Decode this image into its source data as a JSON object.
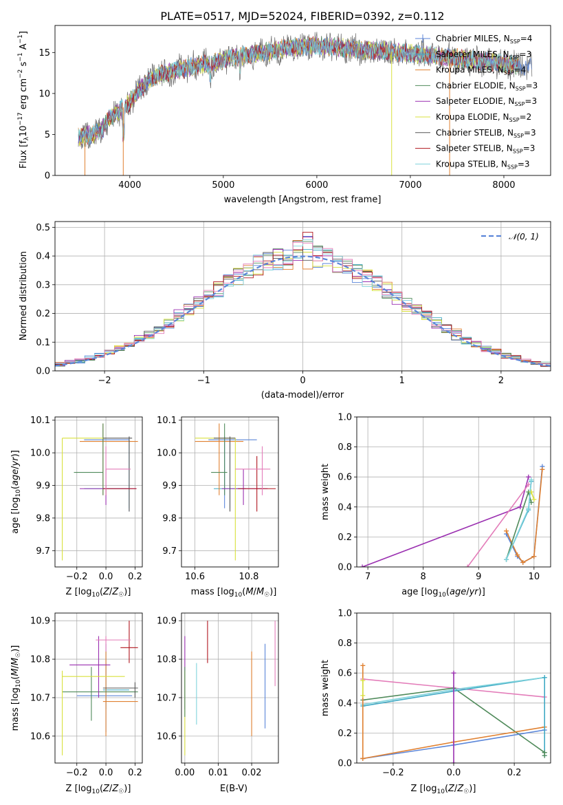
{
  "figure": {
    "title": "PLATE=0517, MJD=52024, FIBERID=0392, z=0.112"
  },
  "legend_entries": [
    {
      "label": "Chabrier MILES, N_SSP=4",
      "base": "Chabrier MILES, N",
      "sub": "SSP",
      "tail": "=4",
      "color": "#5b86d9"
    },
    {
      "label": "Salpeter MILES, N_SSP=3",
      "base": "Salpeter MILES, N",
      "sub": "SSP",
      "tail": "=3",
      "color": "#3fa9c4"
    },
    {
      "label": "Kroupa MILES, N_SSP=4",
      "base": "Kroupa MILES, N",
      "sub": "SSP",
      "tail": "=4",
      "color": "#e08030"
    },
    {
      "label": "Chabrier ELODIE, N_SSP=3",
      "base": "Chabrier ELODIE, N",
      "sub": "SSP",
      "tail": "=3",
      "color": "#4f8a5a"
    },
    {
      "label": "Salpeter ELODIE, N_SSP=3",
      "base": "Salpeter ELODIE, N",
      "sub": "SSP",
      "tail": "=3",
      "color": "#9a2fb0"
    },
    {
      "label": "Kroupa ELODIE, N_SSP=2",
      "base": "Kroupa ELODIE, N",
      "sub": "SSP",
      "tail": "=2",
      "color": "#d8e03c"
    },
    {
      "label": "Chabrier STELIB, N_SSP=3",
      "base": "Chabrier STELIB, N",
      "sub": "SSP",
      "tail": "=3",
      "color": "#555555"
    },
    {
      "label": "Salpeter STELIB, N_SSP=3",
      "base": "Salpeter STELIB, N",
      "sub": "SSP",
      "tail": "=3",
      "color": "#b0151d"
    },
    {
      "label": "Kroupa STELIB, N_SSP=3",
      "base": "Kroupa STELIB, N",
      "sub": "SSP",
      "tail": "=3",
      "color": "#7fd3dc"
    }
  ],
  "extra_colors": {
    "pink": "#e37cb9",
    "gray": "#7a7a7a"
  },
  "chart_data": [
    {
      "id": "spectrum",
      "type": "line",
      "xlabel": "wavelength [Angstrom, rest frame]",
      "ylabel": "Flux [f_λ 10^-17 erg cm^-2 s^-1 A^-1]",
      "xlim": [
        3200,
        8500
      ],
      "ylim": [
        0,
        18.3
      ],
      "xticks": [
        4000,
        5000,
        6000,
        7000,
        8000
      ],
      "yticks": [
        0,
        5,
        10,
        15
      ],
      "grid": false,
      "legend": "top-right",
      "continuum": [
        [
          3450,
          4.6
        ],
        [
          3600,
          5.0
        ],
        [
          3700,
          5.6
        ],
        [
          3800,
          7.2
        ],
        [
          3900,
          8.0
        ],
        [
          4000,
          9.0
        ],
        [
          4100,
          10.5
        ],
        [
          4200,
          11.5
        ],
        [
          4300,
          12.2
        ],
        [
          4500,
          12.8
        ],
        [
          4700,
          13.4
        ],
        [
          4900,
          13.8
        ],
        [
          5100,
          14.4
        ],
        [
          5300,
          14.8
        ],
        [
          5500,
          15.2
        ],
        [
          5700,
          15.6
        ],
        [
          5900,
          15.8
        ],
        [
          6100,
          15.8
        ],
        [
          6300,
          15.5
        ],
        [
          6500,
          15.3
        ],
        [
          6700,
          15.2
        ],
        [
          6900,
          15.0
        ],
        [
          7100,
          14.8
        ],
        [
          7300,
          14.5
        ],
        [
          7500,
          14.3
        ],
        [
          7700,
          14.0
        ],
        [
          7900,
          13.8
        ],
        [
          8100,
          13.5
        ],
        [
          8300,
          13.2
        ]
      ]
    },
    {
      "id": "residuals",
      "type": "line",
      "xlabel": "(data-model)/error",
      "ylabel": "Normed distribution",
      "xlim": [
        -2.5,
        2.5
      ],
      "ylim": [
        0,
        0.52
      ],
      "xticks": [
        -2,
        -1,
        0,
        1,
        2
      ],
      "yticks": [
        0.0,
        0.1,
        0.2,
        0.3,
        0.4,
        0.5
      ],
      "grid": true,
      "legend": "top-right",
      "legend_label": "𝒩(0, 1)",
      "bin_width": 0.1,
      "bin_start": -2.5
    },
    {
      "id": "age-vs-Z",
      "type": "scatter",
      "xlabel": "Z [log10(Z/Z☉)]",
      "ylabel": "age [log10(age/yr)]",
      "xlim": [
        -0.35,
        0.25
      ],
      "ylim": [
        9.65,
        10.11
      ],
      "xticks": [
        -0.2,
        0.0,
        0.2
      ],
      "yticks": [
        9.7,
        9.8,
        9.9,
        10.0,
        10.1
      ],
      "grid": true,
      "points": [
        {
          "c": "#5b86d9",
          "x": 0.16,
          "y": 10.04,
          "xl": -0.15,
          "xh": 0.16,
          "yl": 9.82,
          "yh": 10.05
        },
        {
          "c": "#3fa9c4",
          "x": 0.16,
          "y": 9.89,
          "xl": -0.15,
          "xh": 0.16,
          "yl": 9.83,
          "yh": 10.04
        },
        {
          "c": "#e08030",
          "x": -0.02,
          "y": 10.035,
          "xl": -0.18,
          "xh": 0.22,
          "yl": 9.87,
          "yh": 10.09
        },
        {
          "c": "#4f8a5a",
          "x": -0.02,
          "y": 9.94,
          "xl": -0.22,
          "xh": -0.02,
          "yl": 9.87,
          "yh": 10.09
        },
        {
          "c": "#9a2fb0",
          "x": 0.0,
          "y": 9.89,
          "xl": -0.18,
          "xh": 0.21,
          "yl": 9.84,
          "yh": 9.95
        },
        {
          "c": "#d8e03c",
          "x": -0.3,
          "y": 10.045,
          "xl": -0.3,
          "xh": 0.0,
          "yl": 9.67,
          "yh": 10.045
        },
        {
          "c": "#555555",
          "x": 0.16,
          "y": 10.045,
          "xl": -0.02,
          "xh": 0.18,
          "yl": 9.82,
          "yh": 10.05
        },
        {
          "c": "#b0151d",
          "x": 0.0,
          "y": 9.89,
          "xl": -0.02,
          "xh": 0.21,
          "yl": 9.87,
          "yh": 9.9
        },
        {
          "c": "#e37cb9",
          "x": 0.0,
          "y": 9.95,
          "xl": 0.0,
          "xh": 0.17,
          "yl": 9.87,
          "yh": 10.02
        }
      ]
    },
    {
      "id": "age-vs-mass",
      "type": "scatter",
      "xlabel": "mass [log10(M/M☉)]",
      "ylabel": "",
      "xlim": [
        10.55,
        10.91
      ],
      "ylim": [
        9.65,
        10.11
      ],
      "xticks": [
        10.6,
        10.8
      ],
      "yticks": [
        9.7,
        9.8,
        9.9,
        10.0,
        10.1
      ],
      "grid": true,
      "points": [
        {
          "c": "#5b86d9",
          "x": 10.71,
          "y": 10.04,
          "xl": 10.65,
          "xh": 10.83,
          "yl": 9.83,
          "yh": 10.05
        },
        {
          "c": "#3fa9c4",
          "x": 10.73,
          "y": 9.89,
          "xl": 10.67,
          "xh": 10.79,
          "yl": 9.83,
          "yh": 10.04
        },
        {
          "c": "#e08030",
          "x": 10.69,
          "y": 10.035,
          "xl": 10.6,
          "xh": 10.78,
          "yl": 9.87,
          "yh": 10.09
        },
        {
          "c": "#4f8a5a",
          "x": 10.71,
          "y": 9.94,
          "xl": 10.66,
          "xh": 10.72,
          "yl": 9.87,
          "yh": 10.09
        },
        {
          "c": "#9a2fb0",
          "x": 10.78,
          "y": 9.89,
          "xl": 10.7,
          "xh": 10.87,
          "yl": 9.84,
          "yh": 9.95
        },
        {
          "c": "#d8e03c",
          "x": 10.75,
          "y": 10.045,
          "xl": 10.6,
          "xh": 10.75,
          "yl": 9.67,
          "yh": 10.045
        },
        {
          "c": "#555555",
          "x": 10.73,
          "y": 10.045,
          "xl": 10.67,
          "xh": 10.75,
          "yl": 9.82,
          "yh": 10.05
        },
        {
          "c": "#b0151d",
          "x": 10.83,
          "y": 9.89,
          "xl": 10.76,
          "xh": 10.9,
          "yl": 9.82,
          "yh": 9.99
        },
        {
          "c": "#e37cb9",
          "x": 10.85,
          "y": 9.95,
          "xl": 10.75,
          "xh": 10.88,
          "yl": 9.87,
          "yh": 10.02
        }
      ]
    },
    {
      "id": "weight-vs-age",
      "type": "line",
      "xlabel": "age [log10(age/yr)]",
      "ylabel": "mass weight",
      "xlim": [
        6.8,
        10.3
      ],
      "ylim": [
        0,
        1.0
      ],
      "xticks": [
        7,
        8,
        9,
        10
      ],
      "yticks": [
        0.0,
        0.2,
        0.4,
        0.6,
        0.8,
        1.0
      ],
      "grid": true,
      "series": [
        {
          "c": "#9a2fb0",
          "x": [
            6.9,
            9.75,
            9.9
          ],
          "y": [
            0.0,
            0.4,
            0.6
          ]
        },
        {
          "c": "#e37cb9",
          "x": [
            8.8,
            9.9
          ],
          "y": [
            0.0,
            0.55
          ]
        },
        {
          "c": "#5b86d9",
          "x": [
            9.5,
            9.7,
            9.8,
            10.0,
            10.15
          ],
          "y": [
            0.22,
            0.07,
            0.03,
            0.07,
            0.67
          ]
        },
        {
          "c": "#e08030",
          "x": [
            9.5,
            9.7,
            9.8,
            10.0,
            10.15
          ],
          "y": [
            0.24,
            0.08,
            0.03,
            0.07,
            0.65
          ]
        },
        {
          "c": "#4f8a5a",
          "x": [
            9.5,
            9.9,
            9.95
          ],
          "y": [
            0.05,
            0.5,
            0.43
          ]
        },
        {
          "c": "#3fa9c4",
          "x": [
            9.5,
            9.9,
            9.95
          ],
          "y": [
            0.05,
            0.38,
            0.57
          ]
        },
        {
          "c": "#7fd3dc",
          "x": [
            9.5,
            9.9,
            9.95
          ],
          "y": [
            0.05,
            0.39,
            0.58
          ]
        },
        {
          "c": "#d8e03c",
          "x": [
            9.95,
            10.0
          ],
          "y": [
            0.5,
            0.45
          ]
        }
      ]
    },
    {
      "id": "mass-vs-Z",
      "type": "scatter",
      "xlabel": "Z [log10(Z/Z☉)]",
      "ylabel": "mass [log10(M/M☉)]",
      "xlim": [
        -0.35,
        0.25
      ],
      "ylim": [
        10.53,
        10.92
      ],
      "xticks": [
        -0.2,
        0.0,
        0.2
      ],
      "yticks": [
        10.6,
        10.7,
        10.8,
        10.9
      ],
      "grid": true,
      "points": [
        {
          "c": "#5b86d9",
          "x": 0.0,
          "y": 10.705,
          "xl": -0.2,
          "xh": 0.18,
          "yl": 10.61,
          "yh": 10.84
        },
        {
          "c": "#3fa9c4",
          "x": 0.0,
          "y": 10.72,
          "xl": -0.02,
          "xh": 0.16,
          "yl": 10.67,
          "yh": 10.79
        },
        {
          "c": "#e08030",
          "x": 0.0,
          "y": 10.69,
          "xl": -0.02,
          "xh": 0.22,
          "yl": 10.6,
          "yh": 10.82
        },
        {
          "c": "#4f8a5a",
          "x": -0.1,
          "y": 10.715,
          "xl": -0.3,
          "xh": 0.22,
          "yl": 10.64,
          "yh": 10.78
        },
        {
          "c": "#9a2fb0",
          "x": -0.05,
          "y": 10.785,
          "xl": -0.25,
          "xh": 0.03,
          "yl": 10.7,
          "yh": 10.86
        },
        {
          "c": "#d8e03c",
          "x": -0.3,
          "y": 10.755,
          "xl": -0.3,
          "xh": 0.13,
          "yl": 10.55,
          "yh": 10.77
        },
        {
          "c": "#555555",
          "x": 0.2,
          "y": 10.725,
          "xl": -0.02,
          "xh": 0.22,
          "yl": 10.7,
          "yh": 10.74
        },
        {
          "c": "#b0151d",
          "x": 0.16,
          "y": 10.83,
          "xl": 0.1,
          "xh": 0.22,
          "yl": 10.79,
          "yh": 10.9
        },
        {
          "c": "#e37cb9",
          "x": 0.0,
          "y": 10.85,
          "xl": -0.07,
          "xh": 0.17,
          "yl": 10.82,
          "yh": 10.86
        }
      ]
    },
    {
      "id": "mass-vs-ebv",
      "type": "scatter",
      "xlabel": "E(B-V)",
      "ylabel": "",
      "xlim": [
        -0.001,
        0.028
      ],
      "ylim": [
        10.53,
        10.92
      ],
      "xticks": [
        0.0,
        0.01,
        0.02
      ],
      "yticks": [
        10.6,
        10.7,
        10.8,
        10.9
      ],
      "grid": true,
      "points": [
        {
          "c": "#9a2fb0",
          "x": 0.0,
          "y": 10.76,
          "xl": 0.0,
          "xh": 0.0,
          "yl": 10.67,
          "yh": 10.86
        },
        {
          "c": "#d8e03c",
          "x": 0.0,
          "y": 10.66,
          "xl": 0.0,
          "xh": 0.0,
          "yl": 10.55,
          "yh": 10.77
        },
        {
          "c": "#4f8a5a",
          "x": 0.0,
          "y": 10.7,
          "xl": 0.0,
          "xh": 0.0,
          "yl": 10.65,
          "yh": 10.78
        },
        {
          "c": "#7fd3dc",
          "x": 0.0035,
          "y": 10.71,
          "xl": 0.0035,
          "xh": 0.0035,
          "yl": 10.63,
          "yh": 10.79
        },
        {
          "c": "#b0151d",
          "x": 0.0068,
          "y": 10.85,
          "xl": 0.0068,
          "xh": 0.0068,
          "yl": 10.79,
          "yh": 10.9
        },
        {
          "c": "#e08030",
          "x": 0.02,
          "y": 10.7,
          "xl": 0.02,
          "xh": 0.02,
          "yl": 10.6,
          "yh": 10.82
        },
        {
          "c": "#5b86d9",
          "x": 0.024,
          "y": 10.73,
          "xl": 0.024,
          "xh": 0.024,
          "yl": 10.62,
          "yh": 10.84
        },
        {
          "c": "#e37cb9",
          "x": 0.027,
          "y": 10.81,
          "xl": 0.027,
          "xh": 0.027,
          "yl": 10.73,
          "yh": 10.9
        }
      ]
    },
    {
      "id": "weight-vs-Z",
      "type": "line",
      "xlabel": "Z [log10(Z/Z☉)]",
      "ylabel": "mass weight",
      "xlim": [
        -0.32,
        0.32
      ],
      "ylim": [
        0,
        1.0
      ],
      "xticks": [
        -0.2,
        0.0,
        0.2
      ],
      "yticks": [
        0.0,
        0.2,
        0.4,
        0.6,
        0.8,
        1.0
      ],
      "grid": true,
      "series": [
        {
          "c": "#e37cb9",
          "x": [
            -0.3,
            0.0,
            0.3
          ],
          "y": [
            0.56,
            0.5,
            0.44
          ]
        },
        {
          "c": "#4f8a5a",
          "x": [
            -0.3,
            0.0,
            0.3
          ],
          "y": [
            0.42,
            0.5,
            0.07
          ]
        },
        {
          "c": "#3fa9c4",
          "x": [
            -0.3,
            0.0,
            0.3
          ],
          "y": [
            0.38,
            0.48,
            0.57
          ]
        },
        {
          "c": "#7fd3dc",
          "x": [
            -0.3,
            0.0,
            0.3
          ],
          "y": [
            0.39,
            0.49,
            0.57
          ]
        },
        {
          "c": "#5b86d9",
          "x": [
            -0.3,
            0.0,
            0.3
          ],
          "y": [
            0.03,
            0.12,
            0.22
          ]
        },
        {
          "c": "#e08030",
          "x": [
            -0.3,
            0.0,
            0.3
          ],
          "y": [
            0.03,
            0.14,
            0.24
          ]
        },
        {
          "c": "#9a2fb0",
          "x": [
            0.0,
            0.0
          ],
          "y": [
            0.0,
            0.6
          ]
        },
        {
          "c": "#e08030",
          "x": [
            -0.3,
            -0.3
          ],
          "y": [
            0.03,
            0.65
          ]
        },
        {
          "c": "#d8e03c",
          "x": [
            -0.3,
            -0.3
          ],
          "y": [
            0.45,
            0.55
          ]
        },
        {
          "c": "#3fa9c4",
          "x": [
            0.3,
            0.3
          ],
          "y": [
            0.05,
            0.57
          ]
        },
        {
          "c": "#4f8a5a",
          "x": [
            0.3,
            0.3
          ],
          "y": [
            0.05,
            0.07
          ]
        }
      ]
    }
  ]
}
